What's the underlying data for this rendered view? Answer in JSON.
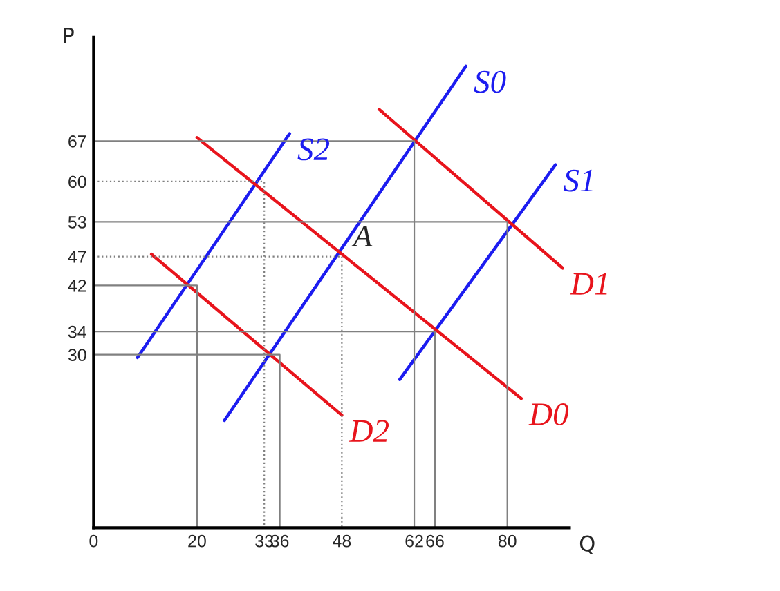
{
  "chart_data": {
    "type": "line",
    "xlabel": "Q",
    "ylabel": "P",
    "xlim": [
      0,
      92
    ],
    "ylim": [
      0,
      85
    ],
    "xticks": [
      0,
      20,
      33,
      36,
      48,
      62,
      66,
      80
    ],
    "yticks": [
      30,
      34,
      42,
      47,
      53,
      60,
      67
    ],
    "grid": false,
    "legend": false,
    "marker": "none",
    "annotations": [
      {
        "text": "A",
        "x": 48,
        "y": 47
      }
    ],
    "series": [
      {
        "name": "S0",
        "color": "#1c1cf0",
        "x": [
          25.3,
          72
        ],
        "values": [
          18.6,
          80
        ]
      },
      {
        "name": "S1",
        "color": "#1c1cf0",
        "x": [
          59.2,
          89.3
        ],
        "values": [
          25.7,
          62.9
        ]
      },
      {
        "name": "S2",
        "color": "#1c1cf0",
        "x": [
          8.5,
          37.9
        ],
        "values": [
          29.5,
          68.3
        ]
      },
      {
        "name": "D0",
        "color": "#e8141c",
        "x": [
          20,
          82.7
        ],
        "values": [
          67.6,
          22.4
        ]
      },
      {
        "name": "D1",
        "color": "#e8141c",
        "x": [
          55.2,
          90.7
        ],
        "values": [
          72.5,
          45
        ]
      },
      {
        "name": "D2",
        "color": "#e8141c",
        "x": [
          11.2,
          48
        ],
        "values": [
          47.4,
          19.5
        ]
      },
      {
        "color": "#808080",
        "line_style": "solid",
        "x": [
          0,
          20,
          20
        ],
        "values": [
          42,
          42,
          0
        ]
      },
      {
        "color": "#808080",
        "line_style": "dotted",
        "x": [
          0,
          33,
          33
        ],
        "values": [
          60,
          60,
          0
        ]
      },
      {
        "color": "#808080",
        "line_style": "solid",
        "x": [
          0,
          36,
          36
        ],
        "values": [
          30,
          30,
          0
        ]
      },
      {
        "color": "#808080",
        "line_style": "dotted",
        "x": [
          0,
          48,
          48
        ],
        "values": [
          47,
          47,
          0
        ]
      },
      {
        "color": "#808080",
        "line_style": "solid",
        "x": [
          0,
          62,
          62
        ],
        "values": [
          67,
          67,
          0
        ]
      },
      {
        "color": "#808080",
        "line_style": "solid",
        "x": [
          0,
          66,
          66
        ],
        "values": [
          34,
          34,
          0
        ]
      },
      {
        "color": "#808080",
        "line_style": "solid",
        "x": [
          0,
          80,
          80
        ],
        "values": [
          53,
          53,
          0
        ]
      }
    ]
  }
}
